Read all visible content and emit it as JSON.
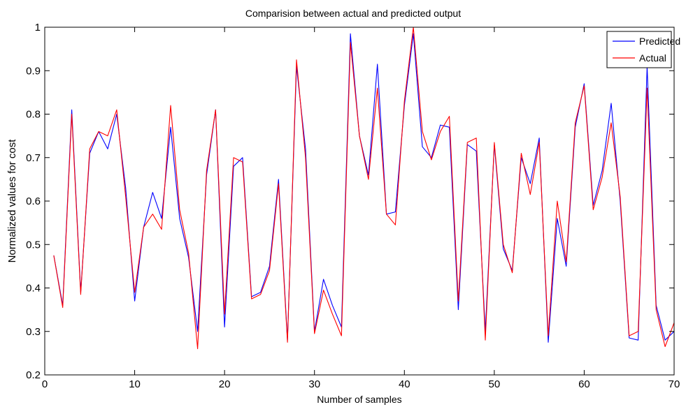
{
  "chart_data": {
    "type": "line",
    "title": "Comparision between actual and predicted output",
    "xlabel": "Number of samples",
    "ylabel": "Normalized values for cost",
    "xlim": [
      0,
      70
    ],
    "ylim": [
      0.2,
      1.0
    ],
    "xticks": [
      "0",
      "10",
      "20",
      "30",
      "40",
      "50",
      "60",
      "70"
    ],
    "yticks": [
      "0.2",
      "0.3",
      "0.4",
      "0.5",
      "0.6",
      "0.7",
      "0.8",
      "0.9",
      "1"
    ],
    "grid": false,
    "legend_position": "top-right",
    "x": [
      1,
      2,
      3,
      4,
      5,
      6,
      7,
      8,
      9,
      10,
      11,
      12,
      13,
      14,
      15,
      16,
      17,
      18,
      19,
      20,
      21,
      22,
      23,
      24,
      25,
      26,
      27,
      28,
      29,
      30,
      31,
      32,
      33,
      34,
      35,
      36,
      37,
      38,
      39,
      40,
      41,
      42,
      43,
      44,
      45,
      46,
      47,
      48,
      49,
      50,
      51,
      52,
      53,
      54,
      55,
      56,
      57,
      58,
      59,
      60,
      61,
      62,
      63,
      64,
      65,
      66,
      67,
      68,
      69,
      70
    ],
    "series": [
      {
        "name": "Predicted",
        "color": "#0000ff",
        "values": [
          0.475,
          0.36,
          0.81,
          0.39,
          0.71,
          0.76,
          0.72,
          0.8,
          0.63,
          0.37,
          0.54,
          0.62,
          0.56,
          0.77,
          0.56,
          0.47,
          0.3,
          0.66,
          0.81,
          0.31,
          0.68,
          0.7,
          0.38,
          0.39,
          0.45,
          0.65,
          0.28,
          0.91,
          0.72,
          0.3,
          0.42,
          0.36,
          0.31,
          0.985,
          0.75,
          0.66,
          0.915,
          0.57,
          0.575,
          0.82,
          0.985,
          0.725,
          0.7,
          0.775,
          0.77,
          0.35,
          0.73,
          0.715,
          0.3,
          0.73,
          0.49,
          0.44,
          0.7,
          0.64,
          0.745,
          0.275,
          0.56,
          0.45,
          0.77,
          0.87,
          0.59,
          0.67,
          0.825,
          0.6,
          0.285,
          0.28,
          0.91,
          0.36,
          0.28,
          0.3
        ]
      },
      {
        "name": "Actual",
        "color": "#ff0000",
        "values": [
          0.475,
          0.355,
          0.8,
          0.385,
          0.72,
          0.76,
          0.75,
          0.81,
          0.61,
          0.39,
          0.54,
          0.57,
          0.535,
          0.82,
          0.58,
          0.48,
          0.26,
          0.67,
          0.81,
          0.34,
          0.7,
          0.69,
          0.375,
          0.385,
          0.44,
          0.64,
          0.275,
          0.925,
          0.7,
          0.295,
          0.395,
          0.34,
          0.29,
          0.965,
          0.75,
          0.65,
          0.86,
          0.57,
          0.545,
          0.83,
          1.0,
          0.76,
          0.695,
          0.76,
          0.795,
          0.37,
          0.735,
          0.745,
          0.28,
          0.735,
          0.5,
          0.435,
          0.71,
          0.615,
          0.735,
          0.29,
          0.6,
          0.46,
          0.78,
          0.865,
          0.58,
          0.655,
          0.78,
          0.61,
          0.29,
          0.3,
          0.86,
          0.35,
          0.265,
          0.32
        ]
      }
    ]
  }
}
